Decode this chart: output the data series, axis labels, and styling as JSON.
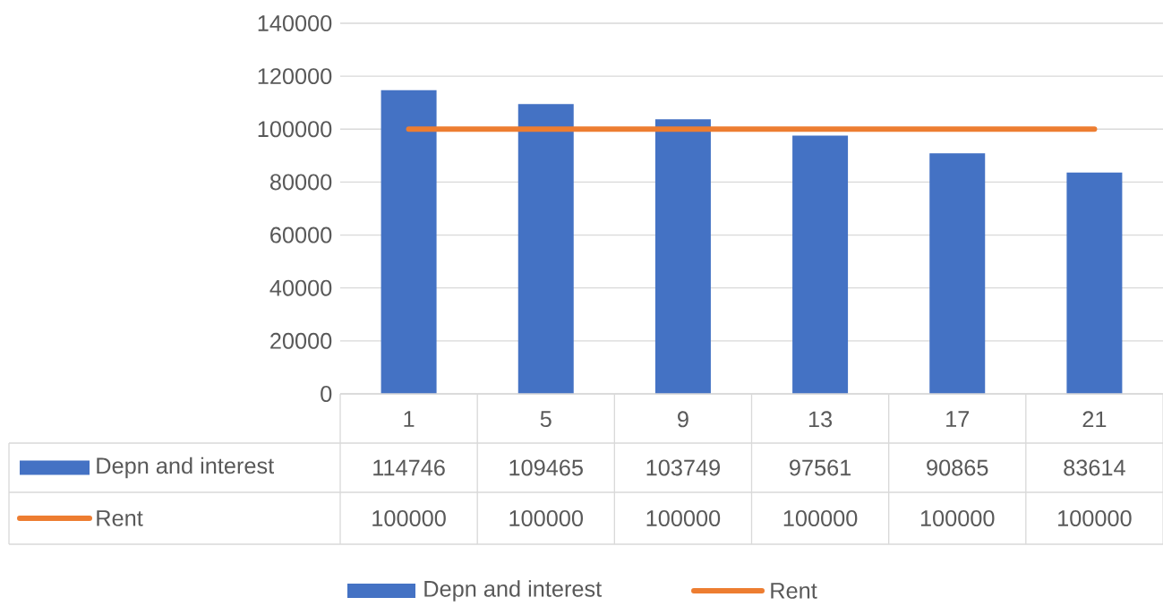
{
  "chart_data": {
    "type": "bar",
    "categories": [
      "1",
      "5",
      "9",
      "13",
      "17",
      "21"
    ],
    "series": [
      {
        "name": "Depn and interest",
        "color": "#4472c4",
        "values": [
          114746,
          109465,
          103749,
          97561,
          90865,
          83614
        ]
      },
      {
        "name": "Rent",
        "type": "line",
        "color": "#ed7d31",
        "values": [
          100000,
          100000,
          100000,
          100000,
          100000,
          100000
        ]
      }
    ],
    "ylim": [
      0,
      140000
    ],
    "yticks": [
      0,
      20000,
      40000,
      60000,
      80000,
      100000,
      120000,
      140000
    ],
    "grid": "y",
    "legend": "bottom",
    "data_labels": true
  }
}
